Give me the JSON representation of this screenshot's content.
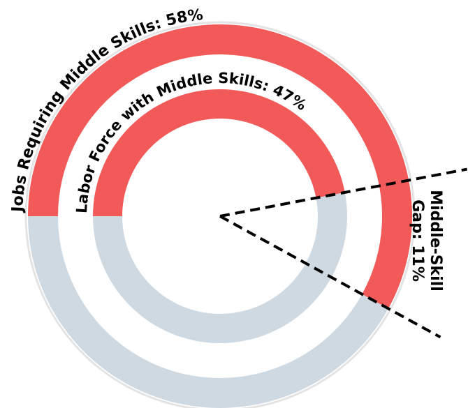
{
  "chart_data": {
    "type": "radial_bar",
    "labels": [
      "Jobs Requiring Middle Skills: 58%",
      "Labor Force with Middle Skills: 47%"
    ],
    "values": [
      58,
      47
    ],
    "max": 100,
    "color": "#f25a5a",
    "track_color": "#cfd9e2",
    "gap_label": [
      "Middle-Skill",
      "Gap: 11%"
    ],
    "gap": 11
  }
}
